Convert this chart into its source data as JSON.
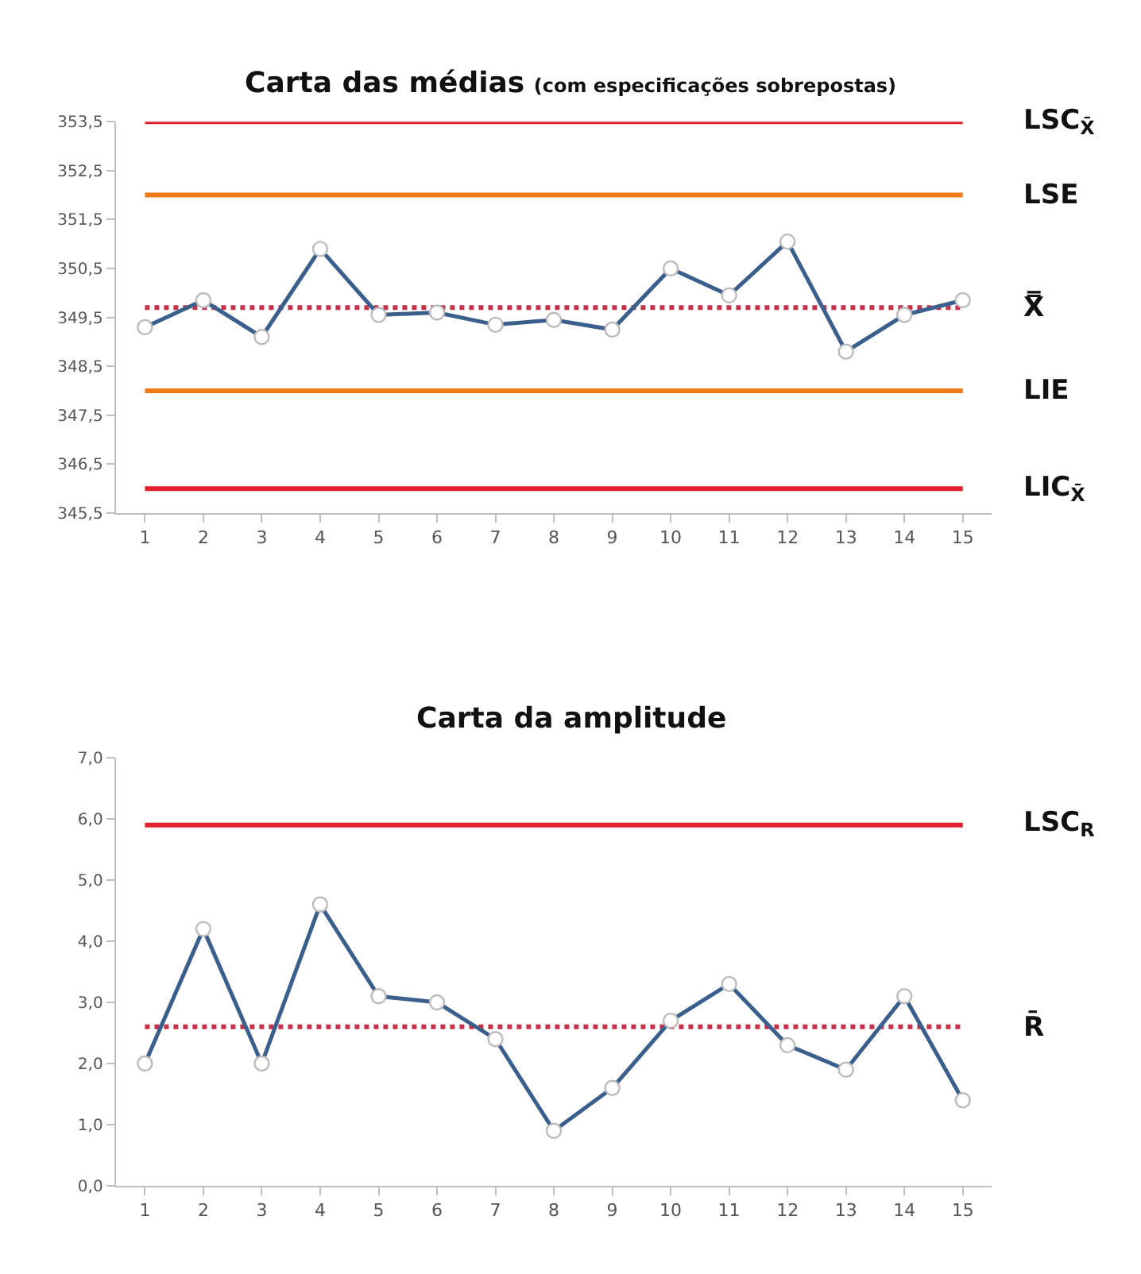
{
  "chart_data": [
    {
      "type": "line",
      "title": "Carta das médias",
      "subtitle": "(com especificações sobrepostas)",
      "x": [
        1,
        2,
        3,
        4,
        5,
        6,
        7,
        8,
        9,
        10,
        11,
        12,
        13,
        14,
        15
      ],
      "xlim": [
        0.5,
        15.5
      ],
      "xticks": [
        1,
        2,
        3,
        4,
        5,
        6,
        7,
        8,
        9,
        10,
        11,
        12,
        13,
        14,
        15
      ],
      "series": [
        {
          "color": "#3b5f8c",
          "values": [
            349.3,
            349.85,
            349.1,
            350.9,
            349.55,
            349.6,
            349.35,
            349.45,
            349.25,
            350.5,
            349.95,
            351.05,
            348.8,
            349.55,
            349.85
          ]
        }
      ],
      "marker": "circle",
      "line_style": "solid",
      "ylim": [
        345.5,
        353.5
      ],
      "yticks": [
        {
          "value": 345.5,
          "label": "345,5"
        },
        {
          "value": 346.5,
          "label": "346,5"
        },
        {
          "value": 347.5,
          "label": "347,5"
        },
        {
          "value": 348.5,
          "label": "348,5"
        },
        {
          "value": 349.5,
          "label": "349,5"
        },
        {
          "value": 350.5,
          "label": "350,5"
        },
        {
          "value": 351.5,
          "label": "351,5"
        },
        {
          "value": 352.5,
          "label": "352,5"
        },
        {
          "value": 353.5,
          "label": "353,5"
        }
      ],
      "ref_lines": [
        {
          "axis": "y",
          "value": 353.5,
          "label": "LSC$_{X̄}$",
          "color": "#e0202c",
          "line_style": "solid"
        },
        {
          "axis": "y",
          "value": 352.0,
          "label": "LSE",
          "color": "#f07a1a",
          "line_style": "solid"
        },
        {
          "axis": "y",
          "value": 349.7,
          "label": "X̿",
          "color": "#c8304a",
          "line_style": "dotted"
        },
        {
          "axis": "y",
          "value": 348.0,
          "label": "LIE",
          "color": "#f07a1a",
          "line_style": "solid"
        },
        {
          "axis": "y",
          "value": 346.0,
          "label": "LIC$_{X̄}$",
          "color": "#e0202c",
          "line_style": "solid"
        }
      ]
    },
    {
      "type": "line",
      "title": "Carta da amplitude",
      "x": [
        1,
        2,
        3,
        4,
        5,
        6,
        7,
        8,
        9,
        10,
        11,
        12,
        13,
        14,
        15
      ],
      "xlim": [
        0.5,
        15.5
      ],
      "xticks": [
        1,
        2,
        3,
        4,
        5,
        6,
        7,
        8,
        9,
        10,
        11,
        12,
        13,
        14,
        15
      ],
      "series": [
        {
          "color": "#3b5f8c",
          "values": [
            2.0,
            4.2,
            2.0,
            4.6,
            3.1,
            3.0,
            2.4,
            0.9,
            1.6,
            2.7,
            3.3,
            2.3,
            1.9,
            3.1,
            1.4
          ]
        }
      ],
      "marker": "circle",
      "line_style": "solid",
      "ylim": [
        0,
        7
      ],
      "yticks": [
        {
          "value": 0,
          "label": "0,0"
        },
        {
          "value": 1,
          "label": "1,0"
        },
        {
          "value": 2,
          "label": "2,0"
        },
        {
          "value": 3,
          "label": "3,0"
        },
        {
          "value": 4,
          "label": "4,0"
        },
        {
          "value": 5,
          "label": "5,0"
        },
        {
          "value": 6,
          "label": "6,0"
        },
        {
          "value": 7,
          "label": "7,0"
        }
      ],
      "ref_lines": [
        {
          "axis": "y",
          "value": 5.9,
          "label": "LSC$_{R}$",
          "color": "#e0202c",
          "line_style": "solid"
        },
        {
          "axis": "y",
          "value": 2.6,
          "label": "R̄",
          "color": "#c8304a",
          "line_style": "dotted"
        }
      ]
    }
  ]
}
